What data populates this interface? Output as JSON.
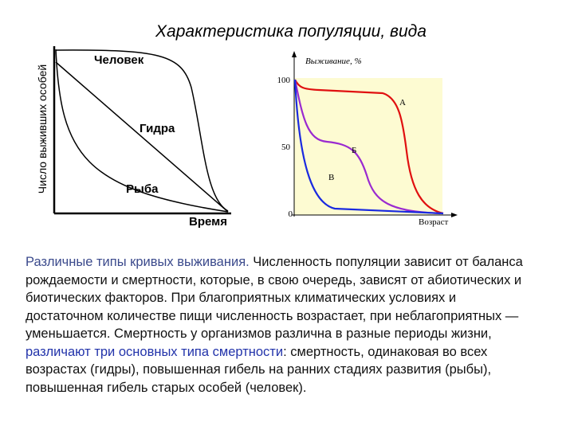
{
  "title": "Характеристика популяции, вида",
  "left_diagram": {
    "y_axis_label": "Число выживших особей",
    "x_axis_label": "Время",
    "curve_labels": [
      "Человек",
      "Гидра",
      "Рыба"
    ]
  },
  "right_diagram": {
    "y_axis_label": "Выживание, %",
    "x_axis_label": "Возраст",
    "yticks": [
      100,
      50,
      0
    ],
    "curve_labels": [
      "А",
      "Б",
      "В"
    ]
  },
  "paragraph": [
    "Различные типы кривых выживания.",
    " Численность популяции зависит от баланса рождаемости и смертности, которые, в свою очередь, зависят от абиотических и биотических факторов. При благоприятных климатических условиях и достаточном количестве пищи численность возрастает, при неблагоприятных — уменьшается. Смертность у организмов различна в разные периоды жизни, ",
    "различают три основных типа смертности",
    ": смертность, одинаковая во всех возрастах (гидры), повышенная гибель на ранних стадиях развития (рыбы), повышенная гибель старых особей (человек)."
  ]
}
